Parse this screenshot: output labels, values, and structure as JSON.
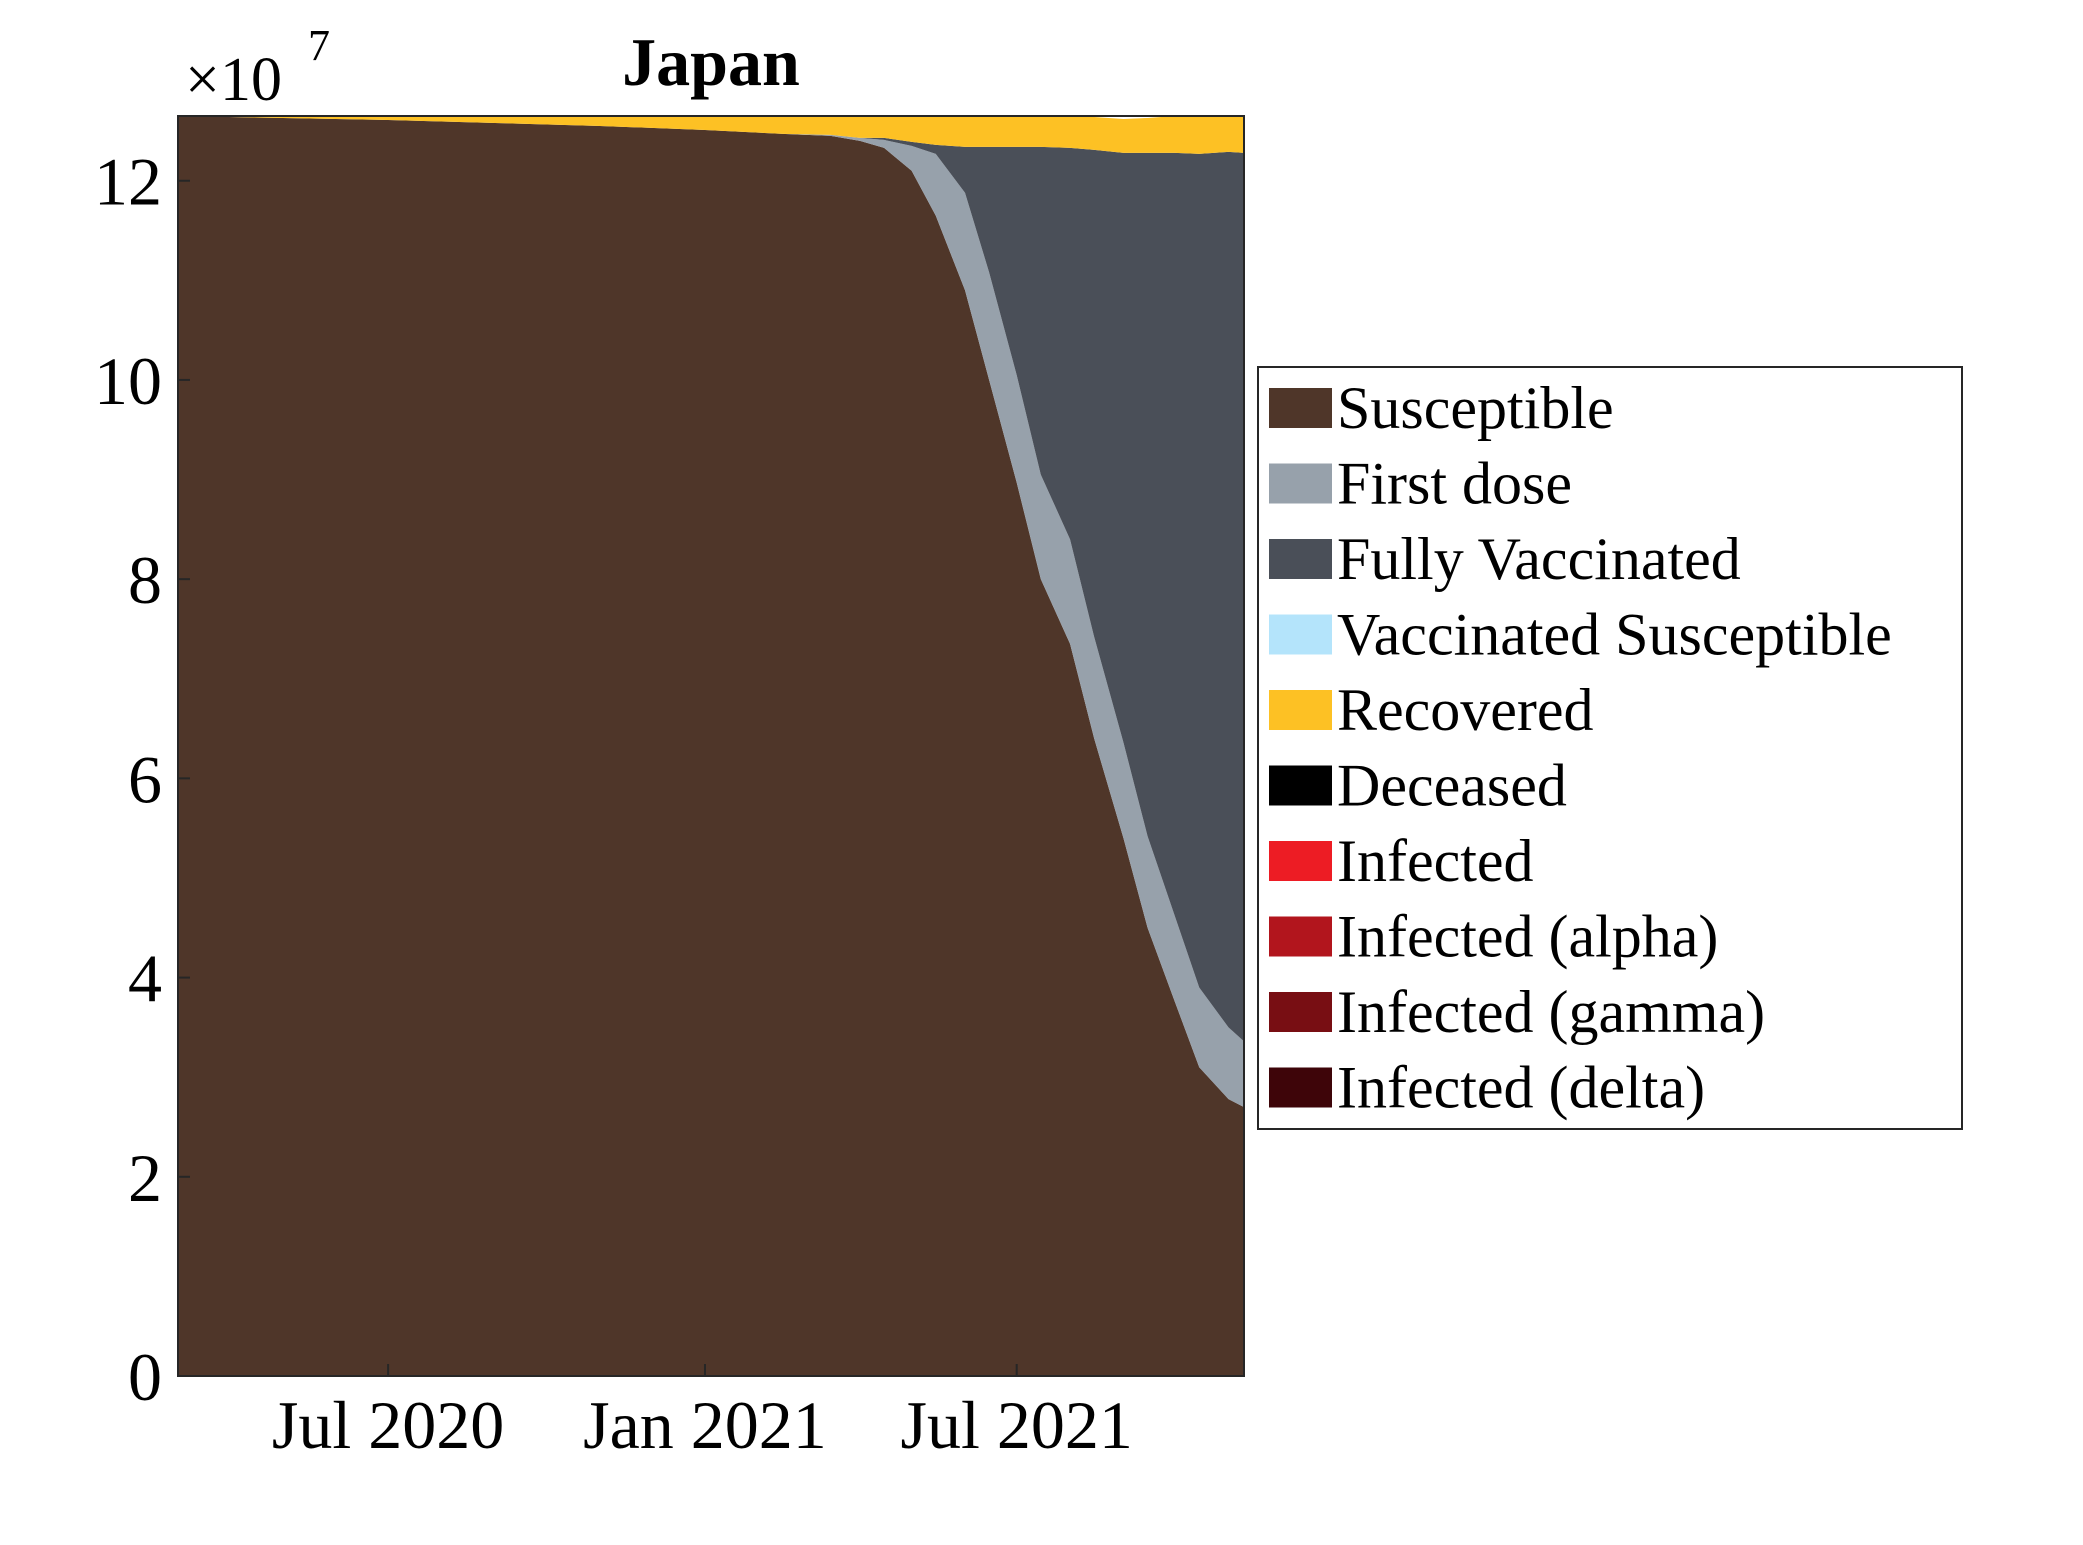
{
  "chart_data": {
    "type": "area",
    "title": "Japan",
    "xlabel": "",
    "ylabel": "",
    "y_multiplier": "×10",
    "y_exponent": "7",
    "xlim": [
      "2020-03-01",
      "2021-11-10"
    ],
    "ylim": [
      0,
      12.65
    ],
    "xticks": [
      {
        "date": "2020-07-01",
        "label": "Jul 2020"
      },
      {
        "date": "2021-01-01",
        "label": "Jan 2021"
      },
      {
        "date": "2021-07-01",
        "label": "Jul 2021"
      }
    ],
    "yticks": [
      0,
      2,
      4,
      6,
      8,
      10,
      12
    ],
    "grid": false,
    "legend_position": "right",
    "x": [
      "2020-03-01",
      "2020-05-01",
      "2020-07-01",
      "2020-09-01",
      "2020-11-01",
      "2021-01-01",
      "2021-02-15",
      "2021-03-15",
      "2021-04-01",
      "2021-04-15",
      "2021-05-01",
      "2021-05-15",
      "2021-06-01",
      "2021-06-15",
      "2021-07-01",
      "2021-07-15",
      "2021-08-01",
      "2021-08-15",
      "2021-09-01",
      "2021-09-15",
      "2021-10-01",
      "2021-10-15",
      "2021-11-01",
      "2021-11-10"
    ],
    "series": [
      {
        "name": "Susceptible",
        "color": "#4F3629",
        "values": [
          12.65,
          12.63,
          12.61,
          12.58,
          12.55,
          12.51,
          12.47,
          12.45,
          12.4,
          12.33,
          12.1,
          11.65,
          10.9,
          10.0,
          8.97,
          8.0,
          7.35,
          6.4,
          5.4,
          4.5,
          3.75,
          3.1,
          2.78,
          2.7
        ]
      },
      {
        "name": "First dose",
        "color": "#97A1AB",
        "values": [
          0,
          0,
          0,
          0,
          0,
          0,
          0,
          0.01,
          0.03,
          0.08,
          0.25,
          0.62,
          0.98,
          1.08,
          1.08,
          1.05,
          1.05,
          1.02,
          0.96,
          0.92,
          0.86,
          0.8,
          0.72,
          0.66
        ]
      },
      {
        "name": "Fully Vaccinated",
        "color": "#4A4F58",
        "values": [
          0,
          0,
          0,
          0,
          0,
          0,
          0,
          0,
          0,
          0.02,
          0.04,
          0.09,
          0.46,
          1.26,
          2.29,
          3.29,
          3.93,
          4.89,
          5.92,
          6.86,
          7.67,
          8.37,
          8.79,
          8.92
        ]
      },
      {
        "name": "Vaccinated Susceptible",
        "color": "#B4E4FB",
        "values": [
          0,
          0,
          0,
          0,
          0,
          0,
          0,
          0,
          0,
          0,
          0,
          0,
          0,
          0,
          0,
          0,
          0,
          0,
          0,
          0,
          0,
          0,
          0,
          0
        ]
      },
      {
        "name": "Recovered",
        "color": "#FDC124",
        "values": [
          0.0,
          0.02,
          0.04,
          0.07,
          0.1,
          0.14,
          0.18,
          0.19,
          0.22,
          0.22,
          0.26,
          0.29,
          0.31,
          0.31,
          0.31,
          0.31,
          0.32,
          0.33,
          0.34,
          0.35,
          0.37,
          0.38,
          0.36,
          0.37
        ]
      },
      {
        "name": "Deceased",
        "color": "#000000",
        "values": [
          0,
          0,
          0,
          0,
          0,
          0,
          0,
          0,
          0,
          0,
          0,
          0,
          0,
          0,
          0,
          0,
          0,
          0,
          0,
          0,
          0,
          0,
          0,
          0
        ]
      },
      {
        "name": "Infected",
        "color": "#ED1C24",
        "values": [
          0,
          0,
          0,
          0,
          0,
          0,
          0,
          0,
          0,
          0,
          0,
          0,
          0,
          0,
          0,
          0,
          0,
          0,
          0,
          0,
          0,
          0,
          0,
          0
        ]
      },
      {
        "name": "Infected (alpha)",
        "color": "#B2151D",
        "values": [
          0,
          0,
          0,
          0,
          0,
          0,
          0,
          0,
          0,
          0,
          0,
          0,
          0,
          0,
          0,
          0,
          0,
          0,
          0,
          0,
          0,
          0,
          0,
          0
        ]
      },
      {
        "name": "Infected (gamma)",
        "color": "#780E13",
        "values": [
          0,
          0,
          0,
          0,
          0,
          0,
          0,
          0,
          0,
          0,
          0,
          0,
          0,
          0,
          0,
          0,
          0,
          0,
          0,
          0,
          0,
          0,
          0,
          0
        ]
      },
      {
        "name": "Infected (delta)",
        "color": "#3E0509",
        "values": [
          0,
          0,
          0,
          0,
          0,
          0,
          0,
          0,
          0,
          0,
          0,
          0,
          0,
          0,
          0,
          0,
          0,
          0,
          0,
          0,
          0,
          0,
          0,
          0
        ]
      }
    ]
  }
}
